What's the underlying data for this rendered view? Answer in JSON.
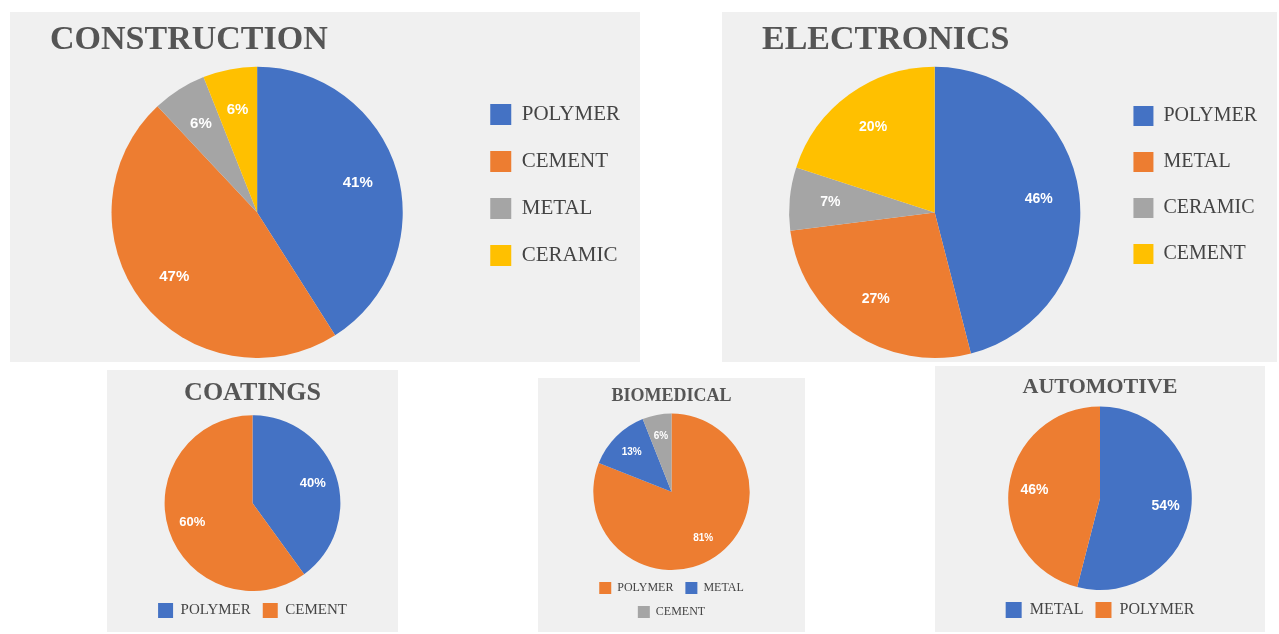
{
  "chart_data": [
    {
      "type": "pie",
      "title": "CONSTRUCTION",
      "categories": [
        "POLYMER",
        "CEMENT",
        "METAL",
        "CERAMIC"
      ],
      "values": [
        41,
        47,
        6,
        6
      ],
      "colors": [
        "#4472c4",
        "#ed7d31",
        "#a5a5a5",
        "#ffc000"
      ],
      "value_labels": [
        "41%",
        "47%",
        "6%",
        "6%"
      ],
      "legend": "right"
    },
    {
      "type": "pie",
      "title": "ELECTRONICS",
      "categories": [
        "POLYMER",
        "METAL",
        "CERAMIC",
        "CEMENT"
      ],
      "values": [
        46,
        27,
        7,
        20
      ],
      "colors": [
        "#4472c4",
        "#ed7d31",
        "#a5a5a5",
        "#ffc000"
      ],
      "value_labels": [
        "46%",
        "27%",
        "7%",
        "20%"
      ],
      "legend": "right"
    },
    {
      "type": "pie",
      "title": "COATINGS",
      "categories": [
        "POLYMER",
        "CEMENT"
      ],
      "values": [
        40,
        60
      ],
      "colors": [
        "#4472c4",
        "#ed7d31"
      ],
      "value_labels": [
        "40%",
        "60%"
      ],
      "legend": "bottom"
    },
    {
      "type": "pie",
      "title": "BIOMEDICAL",
      "categories": [
        "POLYMER",
        "METAL",
        "CEMENT"
      ],
      "values": [
        81,
        13,
        6
      ],
      "colors": [
        "#ed7d31",
        "#4472c4",
        "#a5a5a5"
      ],
      "value_labels": [
        "81%",
        "13%",
        "6%"
      ],
      "legend": "bottom"
    },
    {
      "type": "pie",
      "title": "AUTOMOTIVE",
      "categories": [
        "METAL",
        "POLYMER"
      ],
      "values": [
        54,
        46
      ],
      "colors": [
        "#4472c4",
        "#ed7d31"
      ],
      "value_labels": [
        "54%",
        "46%"
      ],
      "legend": "bottom"
    }
  ]
}
